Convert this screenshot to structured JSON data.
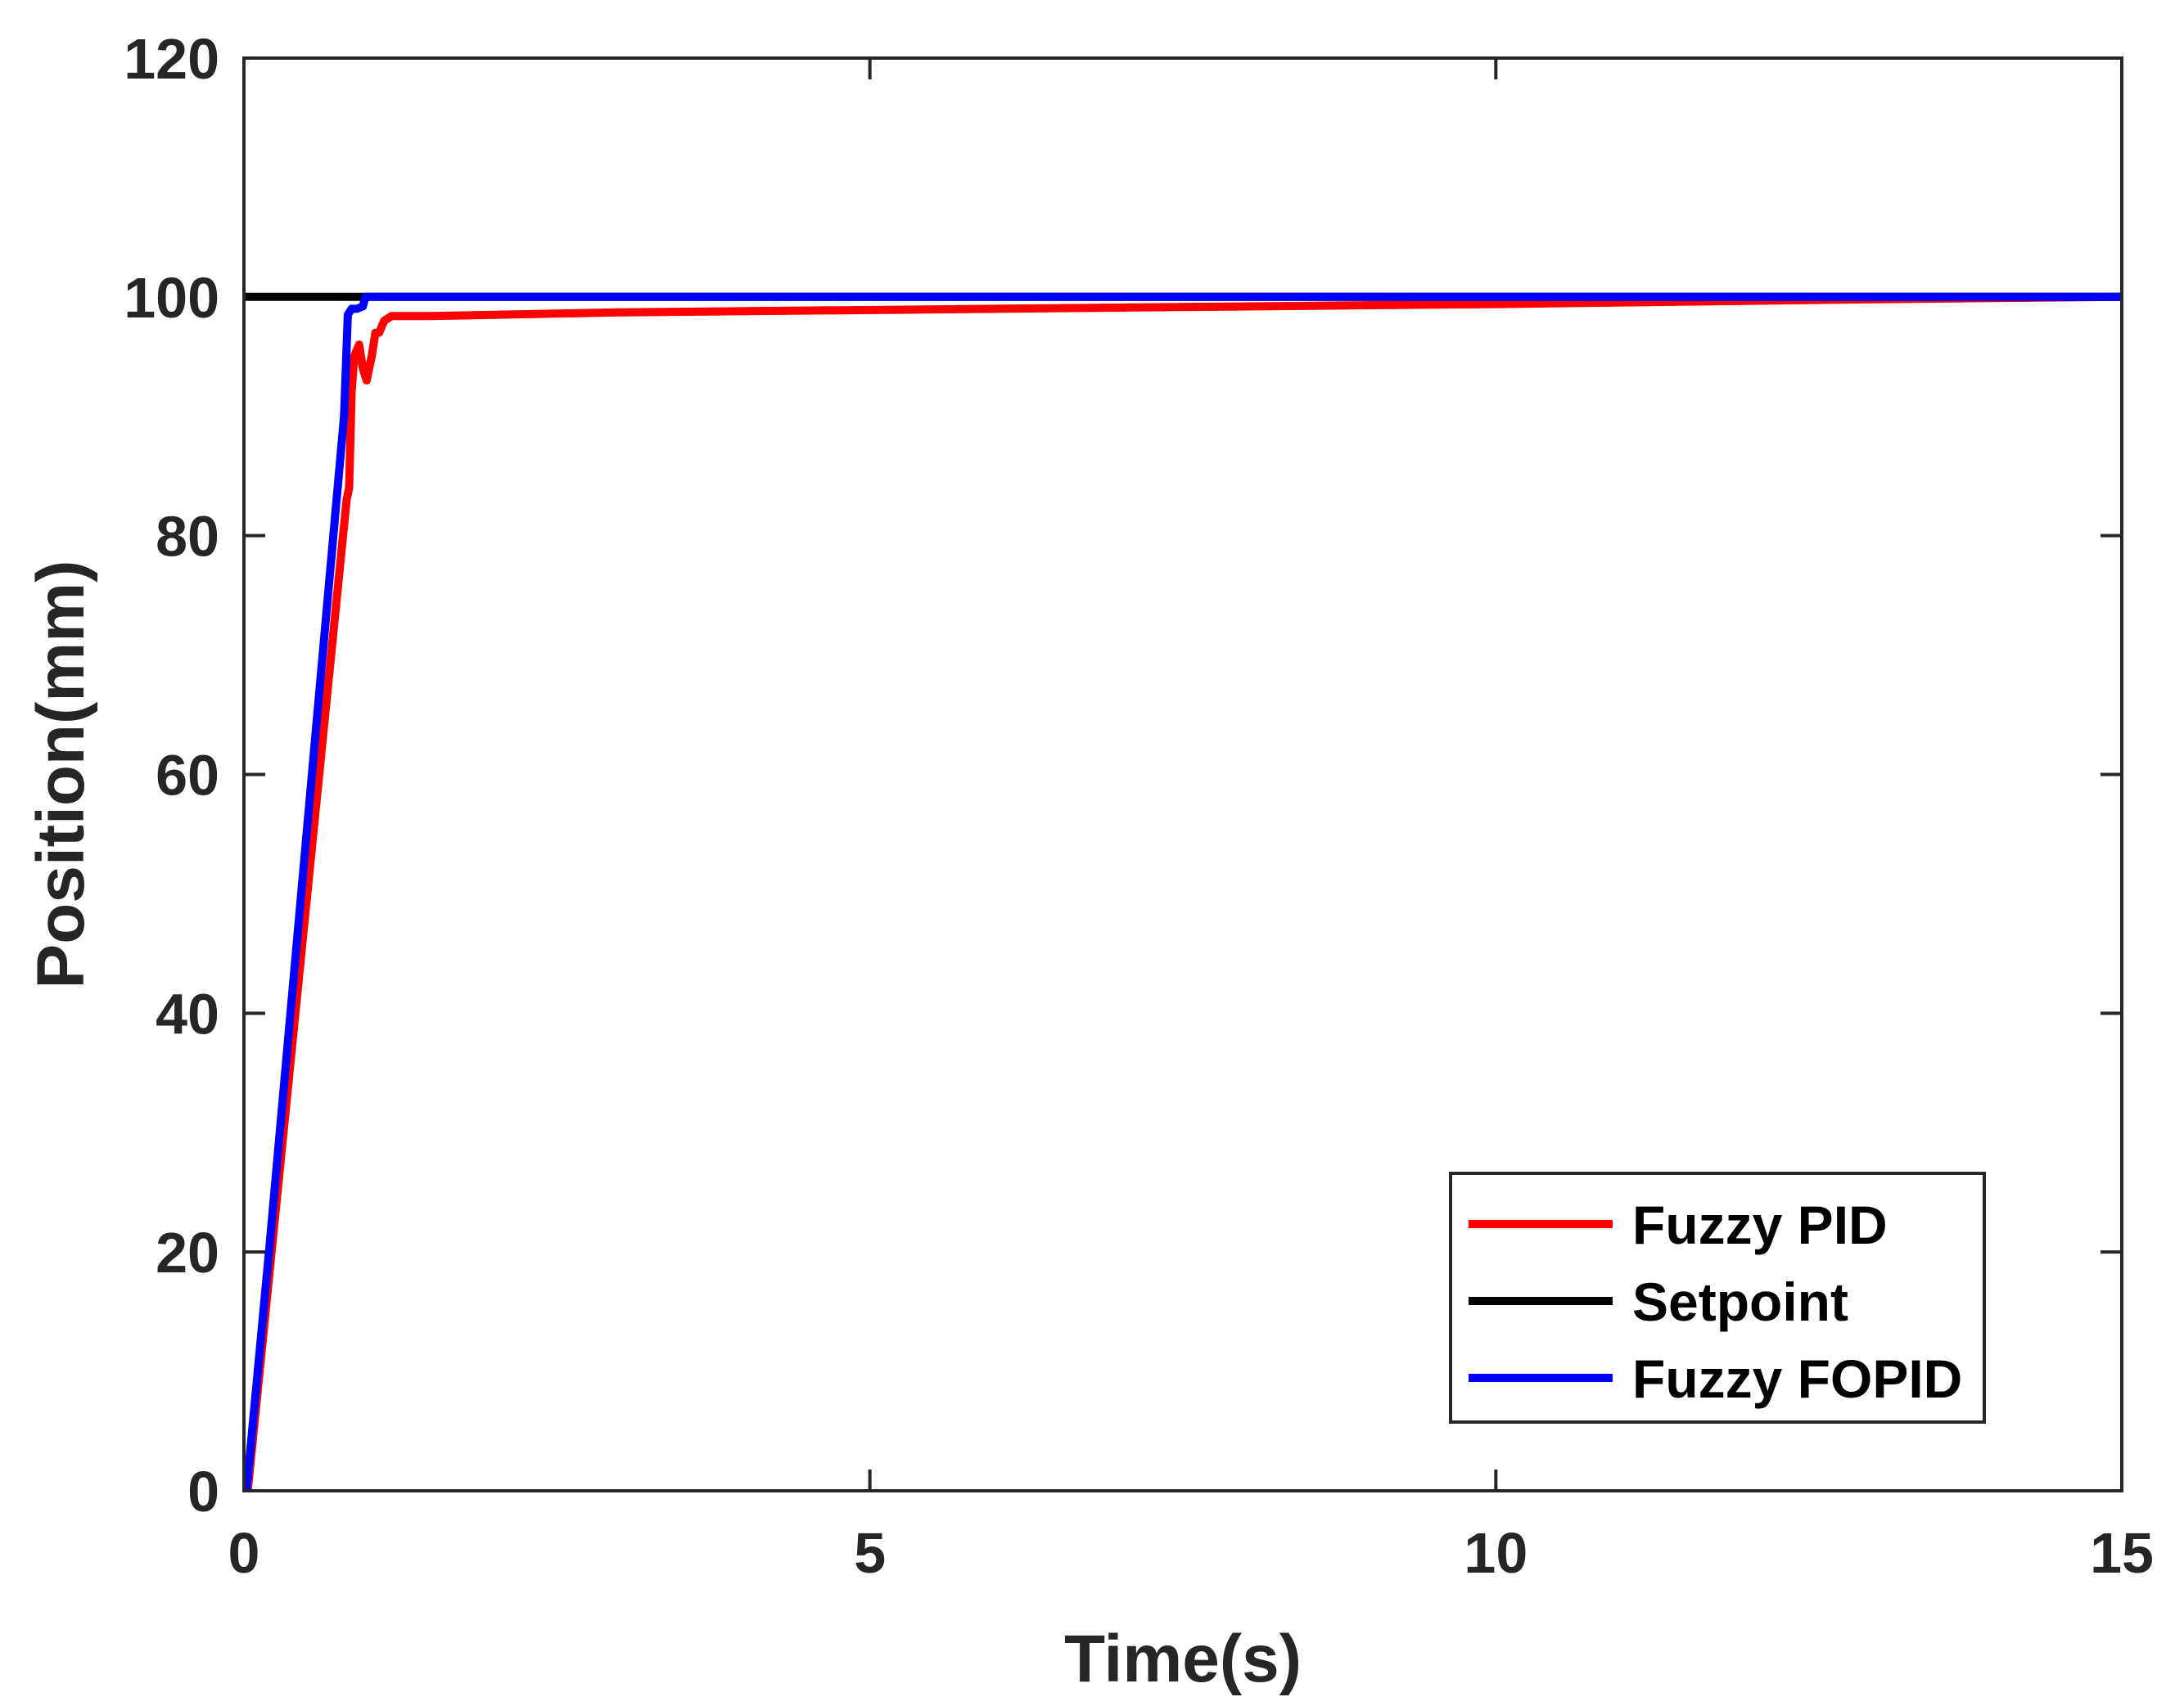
{
  "chart_data": {
    "type": "line",
    "xlabel": "Time(s)",
    "ylabel": "Position(mm)",
    "xlim": [
      0,
      15
    ],
    "ylim": [
      0,
      120
    ],
    "xticks": [
      0,
      5,
      10,
      15
    ],
    "yticks": [
      0,
      20,
      40,
      60,
      80,
      100,
      120
    ],
    "xtick_labels": [
      "0",
      "5",
      "10",
      "15"
    ],
    "ytick_labels": [
      "0",
      "20",
      "40",
      "60",
      "80",
      "100",
      "120"
    ],
    "grid": false,
    "legend_position": "bottom-right",
    "series": [
      {
        "name": "Fuzzy PID",
        "color": "#ff0000",
        "x": [
          0.03,
          0.82,
          0.84,
          0.86,
          0.88,
          0.92,
          0.95,
          0.98,
          1.0,
          1.02,
          1.05,
          1.08,
          1.12,
          1.18,
          1.5,
          3,
          6,
          10,
          13,
          15
        ],
        "y": [
          0,
          83,
          84,
          92,
          95,
          96,
          94,
          93,
          94,
          95,
          97,
          97,
          98,
          98.4,
          98.4,
          98.7,
          99.0,
          99.4,
          99.8,
          100
        ]
      },
      {
        "name": "Setpoint",
        "color": "#000000",
        "x": [
          0,
          15
        ],
        "y": [
          100,
          100
        ]
      },
      {
        "name": "Fuzzy FOPID",
        "color": "#0000ff",
        "x": [
          0.02,
          0.2,
          0.5,
          0.8,
          0.83,
          0.86,
          0.9,
          0.95,
          0.97,
          1.0,
          15
        ],
        "y": [
          0,
          20,
          55,
          90,
          98.5,
          99,
          99,
          99.2,
          100,
          100,
          100
        ]
      }
    ]
  }
}
